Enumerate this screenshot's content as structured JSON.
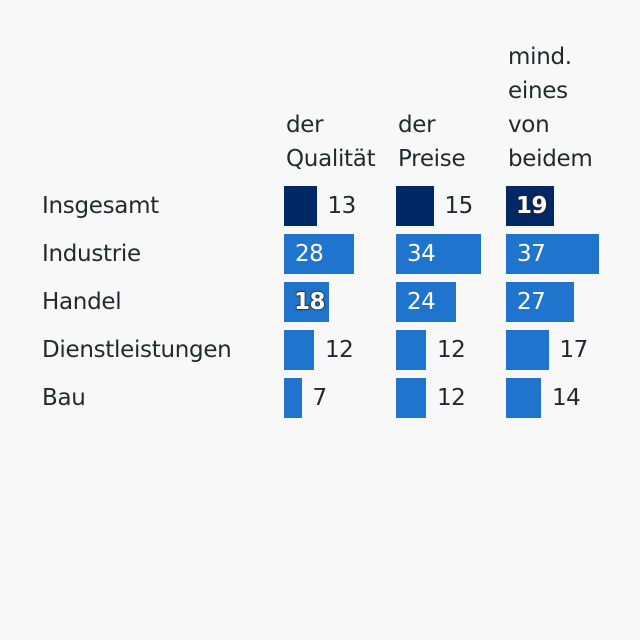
{
  "chart_data": {
    "type": "table",
    "subtype": "bar-table",
    "columns": [
      "der Qualität",
      "der Preise",
      "mind. eines von beidem"
    ],
    "column_header_lines": [
      [
        "der",
        "Qualität"
      ],
      [
        "der",
        "Preise"
      ],
      [
        "mind.",
        "eines",
        "von",
        "beidem"
      ]
    ],
    "rows": [
      "Insgesamt",
      "Industrie",
      "Handel",
      "Dienstleistungen",
      "Bau"
    ],
    "series": [
      {
        "name": "der Qualität",
        "values": [
          13,
          28,
          18,
          12,
          7
        ]
      },
      {
        "name": "der Preise",
        "values": [
          15,
          34,
          24,
          12,
          12
        ]
      },
      {
        "name": "mind. eines von beidem",
        "values": [
          19,
          37,
          27,
          17,
          14
        ]
      }
    ],
    "highlighted_row": "Insgesamt",
    "highlighted_cells": [
      [
        0,
        2
      ],
      [
        2,
        0
      ]
    ],
    "colors": {
      "highlight": "#002864",
      "default": "#1f75cd",
      "background": "#f8f8f8",
      "text": "#1f2a2e"
    }
  }
}
